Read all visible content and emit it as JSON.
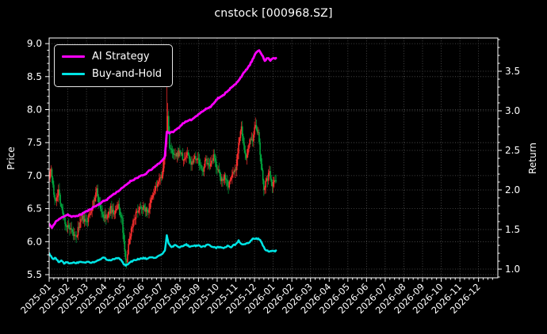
{
  "title": "cnstock [000968.SZ]",
  "legend": {
    "items": [
      {
        "label": "AI Strategy",
        "color": "#ff00ff"
      },
      {
        "label": "Buy-and-Hold",
        "color": "#00e5e5"
      }
    ]
  },
  "axes": {
    "x": {
      "tick_labels": [
        "2025-01",
        "2025-02",
        "2025-03",
        "2025-04",
        "2025-05",
        "2025-06",
        "2025-07",
        "2025-08",
        "2025-09",
        "2025-10",
        "2025-11",
        "2025-12",
        "2026-01",
        "2026-02",
        "2026-03",
        "2026-04",
        "2026-05",
        "2026-06",
        "2026-07",
        "2026-08",
        "2026-09",
        "2026-10",
        "2026-11",
        "2026-12"
      ]
    },
    "y_left": {
      "label": "Price",
      "tick_labels": [
        "5.5",
        "6.0",
        "6.5",
        "7.0",
        "7.5",
        "8.0",
        "8.5",
        "9.0"
      ]
    },
    "y_right": {
      "label": "Return",
      "tick_labels": [
        "1.0",
        "1.5",
        "2.0",
        "2.5",
        "3.0",
        "3.5"
      ]
    }
  },
  "colors": {
    "background": "#000000",
    "text": "#ffffff",
    "grid": "#8f8f8f",
    "spine": "#ffffff"
  },
  "chart_data": {
    "type": "candlestick+line",
    "title": "cnstock [000968.SZ]",
    "x_unit": "months_since_2025-01",
    "x_range_shown": [
      "2025-01",
      "2026-12"
    ],
    "data_span": [
      "2025-01",
      "2026-01"
    ],
    "grid": true,
    "legend_position": "upper left",
    "axes": {
      "left": {
        "label": "Price",
        "ticks": [
          5.5,
          6.0,
          6.5,
          7.0,
          7.5,
          8.0,
          8.5,
          9.0
        ],
        "range": [
          5.45,
          9.08
        ]
      },
      "right": {
        "label": "Return",
        "ticks": [
          1.0,
          1.5,
          2.0,
          2.5,
          3.0,
          3.5
        ],
        "range": [
          0.89,
          3.92
        ]
      }
    },
    "series": [
      {
        "name": "AI Strategy",
        "type": "line",
        "axis": "right",
        "color": "#ff00ff",
        "points": [
          [
            0,
            1.57
          ],
          [
            0.15,
            1.52
          ],
          [
            0.35,
            1.6
          ],
          [
            0.6,
            1.64
          ],
          [
            0.8,
            1.67
          ],
          [
            1.0,
            1.69
          ],
          [
            1.2,
            1.66
          ],
          [
            1.45,
            1.67
          ],
          [
            1.7,
            1.69
          ],
          [
            1.9,
            1.72
          ],
          [
            2.1,
            1.74
          ],
          [
            2.35,
            1.78
          ],
          [
            2.6,
            1.81
          ],
          [
            2.85,
            1.85
          ],
          [
            3.1,
            1.88
          ],
          [
            3.35,
            1.93
          ],
          [
            3.6,
            1.97
          ],
          [
            3.85,
            2.01
          ],
          [
            4.1,
            2.06
          ],
          [
            4.35,
            2.11
          ],
          [
            4.6,
            2.14
          ],
          [
            4.85,
            2.17
          ],
          [
            5.1,
            2.19
          ],
          [
            5.35,
            2.24
          ],
          [
            5.6,
            2.28
          ],
          [
            5.85,
            2.33
          ],
          [
            6.05,
            2.37
          ],
          [
            6.2,
            2.42
          ],
          [
            6.3,
            2.74
          ],
          [
            6.45,
            2.72
          ],
          [
            6.6,
            2.73
          ],
          [
            6.8,
            2.76
          ],
          [
            7.0,
            2.8
          ],
          [
            7.2,
            2.85
          ],
          [
            7.45,
            2.87
          ],
          [
            7.7,
            2.9
          ],
          [
            7.95,
            2.95
          ],
          [
            8.2,
            2.99
          ],
          [
            8.45,
            3.03
          ],
          [
            8.65,
            3.05
          ],
          [
            8.85,
            3.11
          ],
          [
            9.05,
            3.16
          ],
          [
            9.25,
            3.18
          ],
          [
            9.5,
            3.24
          ],
          [
            9.75,
            3.29
          ],
          [
            10.0,
            3.34
          ],
          [
            10.25,
            3.42
          ],
          [
            10.5,
            3.5
          ],
          [
            10.75,
            3.58
          ],
          [
            10.95,
            3.67
          ],
          [
            11.1,
            3.74
          ],
          [
            11.25,
            3.77
          ],
          [
            11.4,
            3.71
          ],
          [
            11.55,
            3.63
          ],
          [
            11.7,
            3.67
          ],
          [
            11.85,
            3.64
          ],
          [
            12.0,
            3.67
          ],
          [
            12.15,
            3.66
          ]
        ]
      },
      {
        "name": "Buy-and-Hold",
        "type": "line",
        "axis": "right",
        "color": "#00e5e5",
        "points": [
          [
            0,
            1.2
          ],
          [
            0.1,
            1.16
          ],
          [
            0.2,
            1.13
          ],
          [
            0.35,
            1.14
          ],
          [
            0.5,
            1.09
          ],
          [
            0.65,
            1.11
          ],
          [
            0.8,
            1.07
          ],
          [
            0.95,
            1.09
          ],
          [
            1.1,
            1.07
          ],
          [
            1.3,
            1.08
          ],
          [
            1.5,
            1.08
          ],
          [
            1.7,
            1.09
          ],
          [
            1.9,
            1.08
          ],
          [
            2.1,
            1.09
          ],
          [
            2.3,
            1.08
          ],
          [
            2.5,
            1.1
          ],
          [
            2.7,
            1.12
          ],
          [
            2.9,
            1.15
          ],
          [
            3.1,
            1.12
          ],
          [
            3.3,
            1.11
          ],
          [
            3.5,
            1.13
          ],
          [
            3.7,
            1.14
          ],
          [
            3.85,
            1.12
          ],
          [
            4.0,
            1.06
          ],
          [
            4.1,
            1.04
          ],
          [
            4.25,
            1.07
          ],
          [
            4.45,
            1.1
          ],
          [
            4.65,
            1.12
          ],
          [
            4.85,
            1.13
          ],
          [
            5.05,
            1.14
          ],
          [
            5.25,
            1.13
          ],
          [
            5.45,
            1.15
          ],
          [
            5.65,
            1.14
          ],
          [
            5.85,
            1.17
          ],
          [
            6.05,
            1.19
          ],
          [
            6.2,
            1.23
          ],
          [
            6.3,
            1.43
          ],
          [
            6.42,
            1.31
          ],
          [
            6.55,
            1.28
          ],
          [
            6.75,
            1.3
          ],
          [
            6.95,
            1.27
          ],
          [
            7.15,
            1.29
          ],
          [
            7.35,
            1.31
          ],
          [
            7.55,
            1.28
          ],
          [
            7.75,
            1.29
          ],
          [
            7.95,
            1.3
          ],
          [
            8.15,
            1.28
          ],
          [
            8.35,
            1.29
          ],
          [
            8.55,
            1.31
          ],
          [
            8.75,
            1.28
          ],
          [
            8.95,
            1.27
          ],
          [
            9.15,
            1.28
          ],
          [
            9.35,
            1.27
          ],
          [
            9.55,
            1.29
          ],
          [
            9.75,
            1.28
          ],
          [
            9.95,
            1.31
          ],
          [
            10.15,
            1.36
          ],
          [
            10.3,
            1.31
          ],
          [
            10.5,
            1.32
          ],
          [
            10.7,
            1.33
          ],
          [
            10.9,
            1.38
          ],
          [
            11.1,
            1.39
          ],
          [
            11.3,
            1.37
          ],
          [
            11.45,
            1.3
          ],
          [
            11.6,
            1.24
          ],
          [
            11.8,
            1.22
          ],
          [
            12.0,
            1.23
          ],
          [
            12.15,
            1.23
          ]
        ]
      },
      {
        "name": "cnstock daily price candles",
        "type": "candlestick",
        "axis": "left",
        "up_color": "#ff2e2e",
        "down_color": "#00a63e",
        "close_anchors": [
          [
            0,
            7.0
          ],
          [
            0.1,
            7.12
          ],
          [
            0.3,
            6.6
          ],
          [
            0.5,
            6.78
          ],
          [
            0.7,
            6.45
          ],
          [
            0.9,
            6.25
          ],
          [
            1.1,
            6.18
          ],
          [
            1.3,
            6.1
          ],
          [
            1.45,
            6.05
          ],
          [
            1.6,
            6.25
          ],
          [
            1.8,
            6.35
          ],
          [
            2.0,
            6.28
          ],
          [
            2.2,
            6.45
          ],
          [
            2.4,
            6.62
          ],
          [
            2.55,
            6.78
          ],
          [
            2.7,
            6.55
          ],
          [
            2.9,
            6.38
          ],
          [
            3.1,
            6.35
          ],
          [
            3.3,
            6.5
          ],
          [
            3.5,
            6.42
          ],
          [
            3.7,
            6.55
          ],
          [
            3.9,
            6.32
          ],
          [
            4.05,
            5.82
          ],
          [
            4.15,
            5.72
          ],
          [
            4.3,
            6.05
          ],
          [
            4.5,
            6.32
          ],
          [
            4.7,
            6.45
          ],
          [
            4.9,
            6.55
          ],
          [
            5.1,
            6.5
          ],
          [
            5.3,
            6.46
          ],
          [
            5.5,
            6.65
          ],
          [
            5.7,
            6.82
          ],
          [
            5.9,
            6.92
          ],
          [
            6.1,
            7.08
          ],
          [
            6.25,
            7.45
          ],
          [
            6.35,
            7.9
          ],
          [
            6.45,
            7.45
          ],
          [
            6.6,
            7.32
          ],
          [
            6.8,
            7.28
          ],
          [
            7.0,
            7.38
          ],
          [
            7.2,
            7.22
          ],
          [
            7.4,
            7.35
          ],
          [
            7.6,
            7.18
          ],
          [
            7.8,
            7.3
          ],
          [
            8.0,
            7.22
          ],
          [
            8.2,
            7.05
          ],
          [
            8.4,
            7.25
          ],
          [
            8.6,
            7.1
          ],
          [
            8.8,
            7.28
          ],
          [
            9.0,
            7.12
          ],
          [
            9.2,
            6.92
          ],
          [
            9.4,
            7.0
          ],
          [
            9.6,
            6.85
          ],
          [
            9.8,
            7.02
          ],
          [
            10.0,
            7.12
          ],
          [
            10.15,
            7.5
          ],
          [
            10.3,
            7.72
          ],
          [
            10.45,
            7.35
          ],
          [
            10.6,
            7.28
          ],
          [
            10.75,
            7.58
          ],
          [
            10.9,
            7.48
          ],
          [
            11.05,
            7.8
          ],
          [
            11.2,
            7.62
          ],
          [
            11.35,
            7.15
          ],
          [
            11.5,
            6.82
          ],
          [
            11.65,
            6.92
          ],
          [
            11.8,
            7.05
          ],
          [
            11.95,
            6.88
          ],
          [
            12.15,
            6.95
          ]
        ],
        "wick_spikes_high": [
          {
            "t": 6.32,
            "price": 8.5
          },
          {
            "t": 6.37,
            "price": 8.1
          },
          {
            "t": 11.05,
            "price": 7.88
          }
        ],
        "wick_spikes_low": [
          {
            "t": 4.12,
            "price": 5.62
          },
          {
            "t": 1.45,
            "price": 5.98
          },
          {
            "t": 11.52,
            "price": 6.72
          }
        ]
      }
    ]
  }
}
